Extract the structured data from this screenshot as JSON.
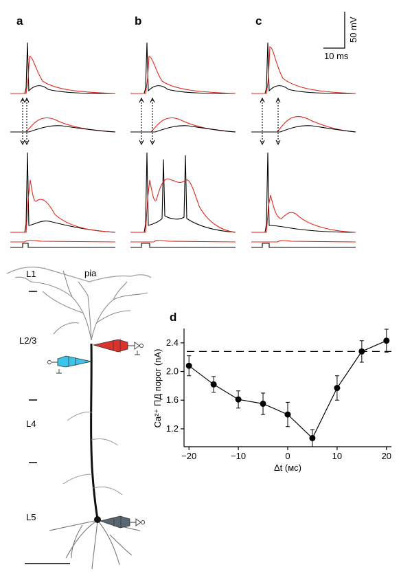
{
  "panels": {
    "a": "a",
    "b": "b",
    "c": "c",
    "d": "d"
  },
  "scalebar": {
    "voltage": "50 mV",
    "time": "10 ms"
  },
  "morphology": {
    "layers": [
      "L1",
      "L2/3",
      "L4",
      "L5"
    ],
    "pia": "pia"
  },
  "colors": {
    "trace_black": "#000000",
    "trace_red": "#e2231a",
    "electrode_red": "#d9342b",
    "electrode_cyan": "#3cc3e8",
    "electrode_gray": "#5a6770",
    "dendrite": "#8a8a8a"
  },
  "chart_data": {
    "type": "line",
    "title": "",
    "xlabel": "Δt  (мс)",
    "ylabel": "Ca²⁺ ПД порог  (nA)",
    "x": [
      -20,
      -15,
      -10,
      -5,
      0,
      5,
      10,
      15,
      20
    ],
    "y": [
      2.08,
      1.82,
      1.61,
      1.55,
      1.4,
      1.07,
      1.77,
      2.28,
      2.43
    ],
    "error": [
      0.14,
      0.11,
      0.12,
      0.15,
      0.17,
      0.12,
      0.17,
      0.15,
      0.16
    ],
    "threshold": 2.28,
    "xticks": [
      -20,
      -10,
      0,
      10,
      20
    ],
    "xtick_labels": [
      "−20",
      "−10",
      "0",
      "10",
      "20"
    ],
    "yticks": [
      1.2,
      1.6,
      2.0,
      2.4
    ],
    "ytick_labels": [
      "1.2",
      "1.6",
      "2.0",
      "2.4"
    ],
    "xlim": [
      -21,
      21
    ],
    "ylim": [
      0.95,
      2.6
    ]
  }
}
